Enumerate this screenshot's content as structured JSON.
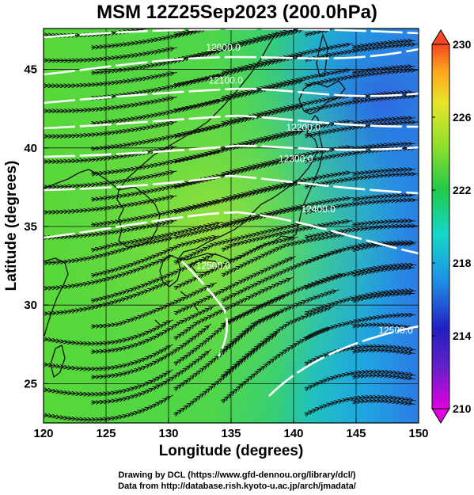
{
  "title": "MSM 12Z25Sep2023 (200.0hPa)",
  "map": {
    "xlabel": "Longitude (degrees)",
    "ylabel": "Latitude  (degrees)",
    "xlim": [
      120,
      150
    ],
    "ylim": [
      22.5,
      47.6
    ],
    "xticks": [
      "120",
      "125",
      "130",
      "135",
      "140",
      "145",
      "150"
    ],
    "yticks": [
      "25",
      "30",
      "35",
      "40",
      "45"
    ],
    "grid": true,
    "field": "temperature shading with wind streamlines and geopotential height contours",
    "contour_labels": [
      {
        "text": "12000.0",
        "lon": 133.0,
        "lat": 46.2
      },
      {
        "text": "12100.0",
        "lon": 133.2,
        "lat": 44.1
      },
      {
        "text": "12200.0",
        "lon": 139.4,
        "lat": 41.1
      },
      {
        "text": "12300.0",
        "lon": 138.8,
        "lat": 39.1
      },
      {
        "text": "12400.0",
        "lon": 140.6,
        "lat": 35.9
      },
      {
        "text": "12500.0",
        "lon": 132.2,
        "lat": 32.3
      },
      {
        "text": "12500.0",
        "lon": 146.8,
        "lat": 28.2
      }
    ]
  },
  "colorbar": {
    "min": 210,
    "max": 230,
    "labels": [
      "230",
      "226",
      "222",
      "218",
      "214",
      "210"
    ],
    "stops": [
      "#e000e0",
      "#3030d0",
      "#1f8fe6",
      "#14d8c8",
      "#21c94c",
      "#8ee02a",
      "#e8e52a",
      "#ffa21c",
      "#f44722"
    ]
  },
  "credits": {
    "line1": "Drawing by DCL (https://www.gfd-dennou.org/library/dcl/)",
    "line2": "Data from http://database.rish.kyoto-u.ac.jp/arch/jmadata/"
  }
}
